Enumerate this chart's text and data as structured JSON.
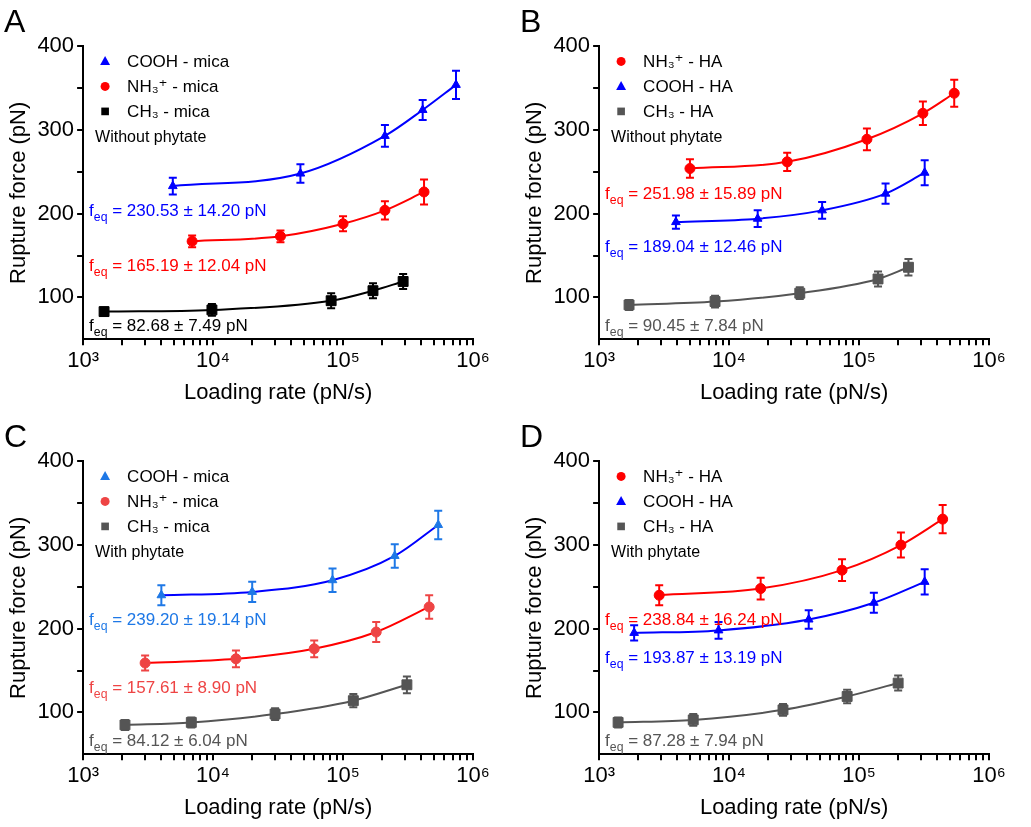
{
  "chart_data": [
    {
      "type": "scatter",
      "title": "A",
      "xlabel": "Loading rate (pN/s)",
      "ylabel": "Rupture force (pN)",
      "log": "x",
      "legend": "top left",
      "xlim": [
        1000,
        1000000
      ],
      "ylim": [
        50,
        400
      ],
      "xticks": [
        {
          "value": 1000,
          "label": "10³"
        },
        {
          "value": 2000,
          "label": null
        },
        {
          "value": 3000,
          "label": null
        },
        {
          "value": 4000,
          "label": null
        },
        {
          "value": 5000,
          "label": null
        },
        {
          "value": 6000,
          "label": null
        },
        {
          "value": 7000,
          "label": null
        },
        {
          "value": 8000,
          "label": null
        },
        {
          "value": 9000,
          "label": null
        },
        {
          "value": 10000,
          "label": "10⁴"
        },
        {
          "value": 20000,
          "label": null
        },
        {
          "value": 30000,
          "label": null
        },
        {
          "value": 40000,
          "label": null
        },
        {
          "value": 50000,
          "label": null
        },
        {
          "value": 60000,
          "label": null
        },
        {
          "value": 70000,
          "label": null
        },
        {
          "value": 80000,
          "label": null
        },
        {
          "value": 90000,
          "label": null
        },
        {
          "value": 100000,
          "label": "10⁵"
        },
        {
          "value": 200000,
          "label": null
        },
        {
          "value": 300000,
          "label": null
        },
        {
          "value": 400000,
          "label": null
        },
        {
          "value": 500000,
          "label": null
        },
        {
          "value": 600000,
          "label": null
        },
        {
          "value": 700000,
          "label": null
        },
        {
          "value": 800000,
          "label": null
        },
        {
          "value": 900000,
          "label": null
        },
        {
          "value": 1000000,
          "label": "10⁶"
        }
      ],
      "yticks": [
        100,
        {
          "value": 150,
          "label": null
        },
        200,
        {
          "value": 250,
          "label": null
        },
        300,
        {
          "value": 350,
          "label": null
        },
        400
      ],
      "annotations": [
        "f$_{eq}$ = 230.53 ± 14.20 pN",
        "f$_{eq}$ = 165.19 ± 12.04 pN",
        "f$_{eq}$ = 82.68 ± 7.49 pN",
        "Without phytate"
      ],
      "series": [
        {
          "type": "scatter",
          "name": "COOH - mica",
          "color": "#0000ff",
          "marker": "triangle",
          "x": [
            4900,
            47000,
            210000,
            410000,
            740000
          ],
          "values": [
            233,
            248,
            293,
            324,
            354
          ],
          "errors": [
            10,
            11,
            13,
            12,
            17
          ]
        },
        {
          "type": "scatter",
          "name": "NH₃⁺ - mica",
          "color": "#ff0000",
          "marker": "circle",
          "x": [
            6900,
            33000,
            100000,
            210000,
            420000
          ],
          "values": [
            167,
            173,
            188,
            204,
            226
          ],
          "errors": [
            7,
            7,
            9,
            11,
            15
          ]
        },
        {
          "type": "scatter",
          "name": "CH₃ - mica",
          "color": "#000000",
          "marker": "square",
          "x": [
            1450,
            9800,
            81000,
            170000,
            290000
          ],
          "values": [
            83,
            85,
            96,
            108,
            119
          ],
          "errors": [
            5,
            7,
            9,
            9,
            9
          ]
        },
        {
          "type": "line",
          "color": "#0000ff",
          "x": [
            4900,
            47000,
            210000,
            410000,
            740000
          ],
          "values": [
            233,
            248,
            293,
            324,
            354
          ]
        },
        {
          "type": "line",
          "color": "#ff0000",
          "x": [
            6900,
            33000,
            100000,
            210000,
            420000
          ],
          "values": [
            167,
            173,
            188,
            204,
            226
          ]
        },
        {
          "type": "line",
          "color": "#000000",
          "x": [
            1450,
            9800,
            81000,
            170000,
            290000
          ],
          "values": [
            83,
            85,
            96,
            108,
            119
          ]
        }
      ]
    },
    {
      "type": "scatter",
      "title": "B",
      "xlabel": "Loading rate (pN/s)",
      "ylabel": "Rupture force (pN)",
      "log": "x",
      "legend": "top left",
      "xlim": [
        1000,
        1000000
      ],
      "ylim": [
        50,
        400
      ],
      "xticks": [
        {
          "value": 1000,
          "label": "10³"
        },
        {
          "value": 2000,
          "label": null
        },
        {
          "value": 3000,
          "label": null
        },
        {
          "value": 4000,
          "label": null
        },
        {
          "value": 5000,
          "label": null
        },
        {
          "value": 6000,
          "label": null
        },
        {
          "value": 7000,
          "label": null
        },
        {
          "value": 8000,
          "label": null
        },
        {
          "value": 9000,
          "label": null
        },
        {
          "value": 10000,
          "label": "10⁴"
        },
        {
          "value": 20000,
          "label": null
        },
        {
          "value": 30000,
          "label": null
        },
        {
          "value": 40000,
          "label": null
        },
        {
          "value": 50000,
          "label": null
        },
        {
          "value": 60000,
          "label": null
        },
        {
          "value": 70000,
          "label": null
        },
        {
          "value": 80000,
          "label": null
        },
        {
          "value": 90000,
          "label": null
        },
        {
          "value": 100000,
          "label": "10⁵"
        },
        {
          "value": 200000,
          "label": null
        },
        {
          "value": 300000,
          "label": null
        },
        {
          "value": 400000,
          "label": null
        },
        {
          "value": 500000,
          "label": null
        },
        {
          "value": 600000,
          "label": null
        },
        {
          "value": 700000,
          "label": null
        },
        {
          "value": 800000,
          "label": null
        },
        {
          "value": 900000,
          "label": null
        },
        {
          "value": 1000000,
          "label": "10⁶"
        }
      ],
      "yticks": [
        100,
        {
          "value": 150,
          "label": null
        },
        200,
        {
          "value": 250,
          "label": null
        },
        300,
        {
          "value": 350,
          "label": null
        },
        400
      ],
      "annotations": [
        "f$_{eq}$ = 251.98 ± 15.89 pN",
        "f$_{eq}$ = 189.04 ± 12.46 pN",
        "f$_{eq}$ = 90.45 ± 7.84 pN",
        "Without phytate"
      ],
      "series": [
        {
          "type": "scatter",
          "name": "NH₃⁺ - HA",
          "color": "#ff0000",
          "marker": "circle",
          "x": [
            5000,
            28000,
            115000,
            310000,
            540000
          ],
          "values": [
            254,
            262,
            289,
            320,
            344
          ],
          "errors": [
            11,
            11,
            13,
            14,
            16
          ]
        },
        {
          "type": "scatter",
          "name": "COOH - HA",
          "color": "#0000ff",
          "marker": "triangle",
          "x": [
            3900,
            16600,
            52000,
            160000,
            320000
          ],
          "values": [
            190,
            194,
            204,
            224,
            249
          ],
          "errors": [
            8,
            10,
            10,
            12,
            15
          ]
        },
        {
          "type": "scatter",
          "name": "CH₃ - HA",
          "color": "#555555",
          "marker": "square",
          "x": [
            1700,
            7800,
            35000,
            140000,
            240000
          ],
          "values": [
            91,
            95,
            105,
            122,
            136
          ],
          "errors": [
            6,
            7,
            7,
            9,
            10
          ]
        },
        {
          "type": "line",
          "color": "#ff0000",
          "x": [
            5000,
            28000,
            115000,
            310000,
            540000
          ],
          "values": [
            254,
            262,
            289,
            320,
            344
          ]
        },
        {
          "type": "line",
          "color": "#0000ff",
          "x": [
            3900,
            16600,
            52000,
            160000,
            320000
          ],
          "values": [
            190,
            194,
            204,
            224,
            249
          ]
        },
        {
          "type": "line",
          "color": "#555555",
          "x": [
            1700,
            7800,
            35000,
            140000,
            240000
          ],
          "values": [
            91,
            95,
            105,
            122,
            136
          ]
        }
      ]
    },
    {
      "type": "scatter",
      "title": "C",
      "xlabel": "Loading rate (pN/s)",
      "ylabel": "Rupture force (pN)",
      "log": "x",
      "legend": "top left",
      "xlim": [
        1000,
        1000000
      ],
      "ylim": [
        50,
        400
      ],
      "xticks": [
        {
          "value": 1000,
          "label": "10³"
        },
        {
          "value": 2000,
          "label": null
        },
        {
          "value": 3000,
          "label": null
        },
        {
          "value": 4000,
          "label": null
        },
        {
          "value": 5000,
          "label": null
        },
        {
          "value": 6000,
          "label": null
        },
        {
          "value": 7000,
          "label": null
        },
        {
          "value": 8000,
          "label": null
        },
        {
          "value": 9000,
          "label": null
        },
        {
          "value": 10000,
          "label": "10⁴"
        },
        {
          "value": 20000,
          "label": null
        },
        {
          "value": 30000,
          "label": null
        },
        {
          "value": 40000,
          "label": null
        },
        {
          "value": 50000,
          "label": null
        },
        {
          "value": 60000,
          "label": null
        },
        {
          "value": 70000,
          "label": null
        },
        {
          "value": 80000,
          "label": null
        },
        {
          "value": 90000,
          "label": null
        },
        {
          "value": 100000,
          "label": "10⁵"
        },
        {
          "value": 200000,
          "label": null
        },
        {
          "value": 300000,
          "label": null
        },
        {
          "value": 400000,
          "label": null
        },
        {
          "value": 500000,
          "label": null
        },
        {
          "value": 600000,
          "label": null
        },
        {
          "value": 700000,
          "label": null
        },
        {
          "value": 800000,
          "label": null
        },
        {
          "value": 900000,
          "label": null
        },
        {
          "value": 1000000,
          "label": "10⁶"
        }
      ],
      "yticks": [
        100,
        {
          "value": 150,
          "label": null
        },
        200,
        {
          "value": 250,
          "label": null
        },
        300,
        {
          "value": 350,
          "label": null
        },
        400
      ],
      "annotations": [
        "f$_{eq}$ = 239.20 ± 19.14 pN",
        "f$_{eq}$ = 157.61 ± 8.90 pN",
        "f$_{eq}$ = 84.12 ± 6.04 pN",
        "With phytate"
      ],
      "series": [
        {
          "type": "scatter",
          "name": "COOH - mica",
          "color": "#1e78e6",
          "marker": "triangle",
          "x": [
            4000,
            20000,
            83000,
            250000,
            540000
          ],
          "values": [
            240,
            244,
            258,
            287,
            324
          ],
          "errors": [
            12,
            12,
            14,
            14,
            17
          ]
        },
        {
          "type": "scatter",
          "name": "NH₃⁺ - mica",
          "color": "#ee4444",
          "marker": "circle",
          "x": [
            3000,
            15000,
            60000,
            180000,
            460000
          ],
          "values": [
            159,
            164,
            176,
            196,
            226
          ],
          "errors": [
            9,
            10,
            10,
            12,
            14
          ]
        },
        {
          "type": "scatter",
          "name": "CH₃ - mica",
          "color": "#555555",
          "marker": "square",
          "x": [
            2100,
            6800,
            30000,
            120000,
            310000
          ],
          "values": [
            85,
            88,
            98,
            114,
            133
          ],
          "errors": [
            6,
            6,
            7,
            8,
            10
          ]
        },
        {
          "type": "line",
          "color": "#0000ff",
          "x": [
            4000,
            20000,
            83000,
            250000,
            540000
          ],
          "values": [
            240,
            244,
            258,
            287,
            324
          ]
        },
        {
          "type": "line",
          "color": "#ff0000",
          "x": [
            3000,
            15000,
            60000,
            180000,
            460000
          ],
          "values": [
            159,
            164,
            176,
            196,
            226
          ]
        },
        {
          "type": "line",
          "color": "#555555",
          "x": [
            2100,
            6800,
            30000,
            120000,
            310000
          ],
          "values": [
            85,
            88,
            98,
            114,
            133
          ]
        }
      ]
    },
    {
      "type": "scatter",
      "title": "D",
      "xlabel": "Loading rate (pN/s)",
      "ylabel": "Rupture force (pN)",
      "log": "x",
      "legend": "top left",
      "xlim": [
        1000,
        1000000
      ],
      "ylim": [
        50,
        400
      ],
      "xticks": [
        {
          "value": 1000,
          "label": "10³"
        },
        {
          "value": 2000,
          "label": null
        },
        {
          "value": 3000,
          "label": null
        },
        {
          "value": 4000,
          "label": null
        },
        {
          "value": 5000,
          "label": null
        },
        {
          "value": 6000,
          "label": null
        },
        {
          "value": 7000,
          "label": null
        },
        {
          "value": 8000,
          "label": null
        },
        {
          "value": 9000,
          "label": null
        },
        {
          "value": 10000,
          "label": "10⁴"
        },
        {
          "value": 20000,
          "label": null
        },
        {
          "value": 30000,
          "label": null
        },
        {
          "value": 40000,
          "label": null
        },
        {
          "value": 50000,
          "label": null
        },
        {
          "value": 60000,
          "label": null
        },
        {
          "value": 70000,
          "label": null
        },
        {
          "value": 80000,
          "label": null
        },
        {
          "value": 90000,
          "label": null
        },
        {
          "value": 100000,
          "label": "10⁵"
        },
        {
          "value": 200000,
          "label": null
        },
        {
          "value": 300000,
          "label": null
        },
        {
          "value": 400000,
          "label": null
        },
        {
          "value": 500000,
          "label": null
        },
        {
          "value": 600000,
          "label": null
        },
        {
          "value": 700000,
          "label": null
        },
        {
          "value": 800000,
          "label": null
        },
        {
          "value": 900000,
          "label": null
        },
        {
          "value": 1000000,
          "label": "10⁶"
        }
      ],
      "yticks": [
        100,
        {
          "value": 150,
          "label": null
        },
        200,
        {
          "value": 250,
          "label": null
        },
        300,
        {
          "value": 350,
          "label": null
        },
        400
      ],
      "annotations": [
        "f$_{eq}$ = 238.84 ± 16.24 pN",
        "f$_{eq}$ = 193.87 ± 13.19 pN",
        "f$_{eq}$ = 87.28 ± 7.94 pN",
        "With phytate"
      ],
      "series": [
        {
          "type": "scatter",
          "name": "NH₃⁺ - HA",
          "color": "#ff0000",
          "marker": "circle",
          "x": [
            2900,
            17500,
            74000,
            210000,
            440000
          ],
          "values": [
            240,
            248,
            270,
            300,
            331
          ],
          "errors": [
            12,
            13,
            13,
            15,
            17
          ]
        },
        {
          "type": "scatter",
          "name": "COOH - HA",
          "color": "#0000ff",
          "marker": "triangle",
          "x": [
            1860,
            8300,
            41000,
            130000,
            320000
          ],
          "values": [
            195,
            198,
            211,
            231,
            256
          ],
          "errors": [
            9,
            10,
            11,
            12,
            15
          ]
        },
        {
          "type": "scatter",
          "name": "CH₃ - HA",
          "color": "#555555",
          "marker": "square",
          "x": [
            1400,
            5300,
            26000,
            81000,
            200000
          ],
          "values": [
            88,
            91,
            103,
            119,
            135
          ],
          "errors": [
            6,
            7,
            7,
            8,
            9
          ]
        },
        {
          "type": "line",
          "color": "#ff0000",
          "x": [
            2900,
            17500,
            74000,
            210000,
            440000
          ],
          "values": [
            240,
            248,
            270,
            300,
            331
          ]
        },
        {
          "type": "line",
          "color": "#0000ff",
          "x": [
            1860,
            8300,
            41000,
            130000,
            320000
          ],
          "values": [
            195,
            198,
            211,
            231,
            256
          ]
        },
        {
          "type": "line",
          "color": "#555555",
          "x": [
            1400,
            5300,
            26000,
            81000,
            200000
          ],
          "values": [
            88,
            91,
            103,
            119,
            135
          ]
        }
      ]
    }
  ]
}
